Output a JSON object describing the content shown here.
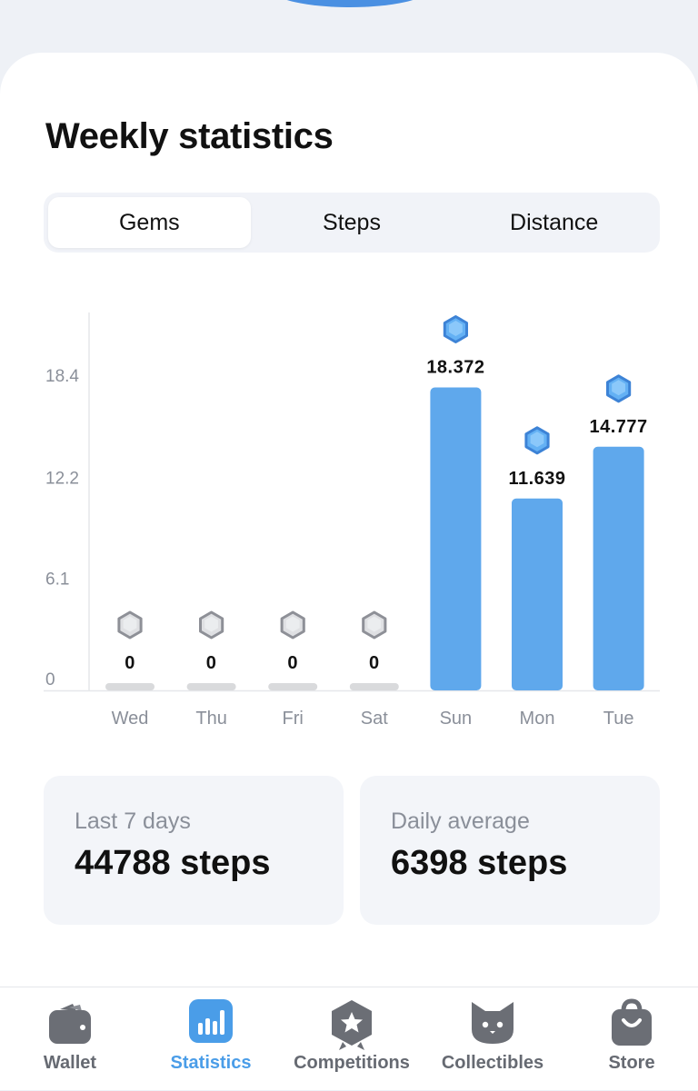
{
  "page": {
    "title": "Weekly statistics"
  },
  "tabs": [
    {
      "label": "Gems",
      "active": true
    },
    {
      "label": "Steps",
      "active": false
    },
    {
      "label": "Distance",
      "active": false
    }
  ],
  "chart_data": {
    "type": "bar",
    "categories": [
      "Wed",
      "Thu",
      "Fri",
      "Sat",
      "Sun",
      "Mon",
      "Tue"
    ],
    "values": [
      0,
      0,
      0,
      0,
      18.372,
      11.639,
      14.777
    ],
    "value_labels": [
      "0",
      "0",
      "0",
      "0",
      "18.372",
      "11.639",
      "14.777"
    ],
    "yticks": [
      "0",
      "6.1",
      "12.2",
      "18.4"
    ],
    "ytick_values": [
      0,
      6.1,
      12.2,
      18.4
    ],
    "ylim": [
      0,
      18.4
    ],
    "bar_color": "#5fa8ec",
    "empty_bar_color": "#d9dadc",
    "icon": "gem-icon"
  },
  "stats": [
    {
      "label": "Last 7 days",
      "value": "44788 steps"
    },
    {
      "label": "Daily average",
      "value": "6398 steps"
    }
  ],
  "nav": [
    {
      "label": "Wallet",
      "icon": "wallet-icon",
      "active": false
    },
    {
      "label": "Statistics",
      "icon": "statistics-icon",
      "active": true
    },
    {
      "label": "Competitions",
      "icon": "competitions-icon",
      "active": false
    },
    {
      "label": "Collectibles",
      "icon": "collectibles-icon",
      "active": false
    },
    {
      "label": "Store",
      "icon": "store-icon",
      "active": false
    }
  ],
  "colors": {
    "accent": "#4a9de8",
    "inactive": "#666a72"
  }
}
